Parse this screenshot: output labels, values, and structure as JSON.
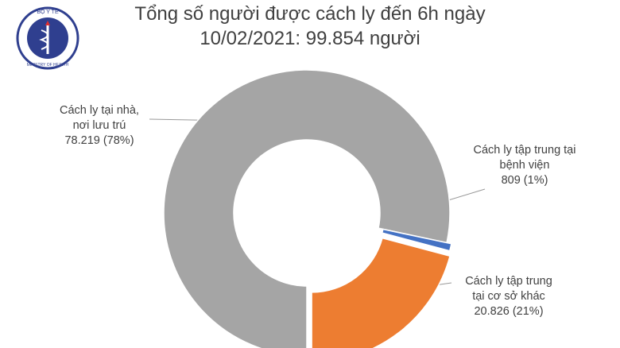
{
  "logo": {
    "top": "BỘ Y TẾ",
    "bottom": "MINISTRY OF HEALTH"
  },
  "chart_data": {
    "type": "pie",
    "donut": true,
    "title": "Tổng số người được cách ly đến 6h ngày\n10/02/2021: 99.854 người",
    "categories": [
      "Cách ly tại nhà,\nnơi lưu trú",
      "Cách ly tập trung tại\nbệnh viện",
      "Cách ly tập trung\ntại cơ sở khác"
    ],
    "values": [
      78219,
      809,
      20826
    ],
    "value_labels": [
      "78.219 (78%)",
      "809 (1%)",
      "20.826 (21%)"
    ],
    "colors": [
      "#a5a5a5",
      "#4472c4",
      "#ed7d31"
    ]
  }
}
